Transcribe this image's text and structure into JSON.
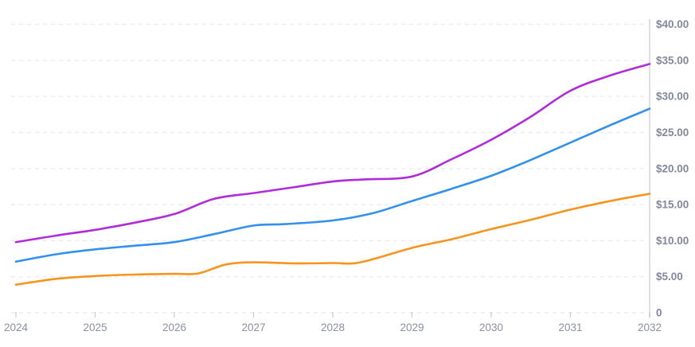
{
  "chart": {
    "background": "#ffffff",
    "grid_color": "#e9ebf3",
    "axis_line_color": "#dde0ea",
    "tick_color": "#c6cad8",
    "y_label_color": "#82879c",
    "x_label_color": "#8a8fa3",
    "y_axis": {
      "position": "right",
      "tick_labels": [
        "$40.00",
        "$35.00",
        "$30.00",
        "$25.00",
        "$20.00",
        "$15.00",
        "$10.00",
        "$5.00",
        "0"
      ],
      "tick_values": [
        40,
        35,
        30,
        25,
        20,
        15,
        10,
        5,
        0
      ]
    },
    "x_axis": {
      "tick_labels": [
        "2024",
        "2025",
        "2026",
        "2027",
        "2028",
        "2029",
        "2030",
        "2031",
        "2032"
      ],
      "tick_values": [
        2024,
        2025,
        2026,
        2027,
        2028,
        2029,
        2030,
        2031,
        2032
      ]
    }
  },
  "chart_data": {
    "type": "line",
    "title": "",
    "xlabel": "",
    "ylabel": "",
    "x": [
      2024,
      2025,
      2026,
      2027,
      2028,
      2029,
      2030,
      2031,
      2032
    ],
    "ylim": [
      0,
      40
    ],
    "xlim": [
      2024,
      2032
    ],
    "grid": "horizontal dashed",
    "legend": "none",
    "y_axis_side": "right",
    "currency_format": "USD",
    "series": [
      {
        "name": "purple-line",
        "color": "#b02bd9",
        "values": [
          9.8,
          11.5,
          13.7,
          16.6,
          18.2,
          18.9,
          24.0,
          30.8,
          34.5
        ]
      },
      {
        "name": "blue-line",
        "color": "#3390ec",
        "values": [
          7.1,
          8.8,
          9.8,
          12.1,
          12.8,
          15.5,
          19.0,
          23.6,
          28.3
        ]
      },
      {
        "name": "orange-line",
        "color": "#f7941d",
        "values": [
          3.9,
          5.1,
          5.4,
          7.0,
          6.9,
          9.0,
          11.6,
          14.3,
          16.5
        ]
      }
    ],
    "smooth_samples": [
      {
        "name": "purple-line",
        "points": [
          [
            2024,
            9.8
          ],
          [
            2024.5,
            10.7
          ],
          [
            2025,
            11.5
          ],
          [
            2025.5,
            12.5
          ],
          [
            2026,
            13.7
          ],
          [
            2026.5,
            15.8
          ],
          [
            2027,
            16.6
          ],
          [
            2027.5,
            17.4
          ],
          [
            2028,
            18.2
          ],
          [
            2028.4,
            18.5
          ],
          [
            2029,
            18.9
          ],
          [
            2029.5,
            21.3
          ],
          [
            2030,
            24.0
          ],
          [
            2030.5,
            27.2
          ],
          [
            2031,
            30.8
          ],
          [
            2031.5,
            32.9
          ],
          [
            2032,
            34.5
          ]
        ]
      },
      {
        "name": "blue-line",
        "points": [
          [
            2024,
            7.1
          ],
          [
            2024.5,
            8.1
          ],
          [
            2025,
            8.8
          ],
          [
            2025.5,
            9.3
          ],
          [
            2026,
            9.8
          ],
          [
            2026.5,
            10.9
          ],
          [
            2027,
            12.1
          ],
          [
            2027.4,
            12.3
          ],
          [
            2028,
            12.8
          ],
          [
            2028.5,
            13.8
          ],
          [
            2029,
            15.5
          ],
          [
            2029.5,
            17.2
          ],
          [
            2030,
            19.0
          ],
          [
            2030.5,
            21.2
          ],
          [
            2031,
            23.6
          ],
          [
            2031.5,
            26.0
          ],
          [
            2032,
            28.3
          ]
        ]
      },
      {
        "name": "orange-line",
        "points": [
          [
            2024,
            3.9
          ],
          [
            2024.5,
            4.7
          ],
          [
            2025,
            5.1
          ],
          [
            2025.5,
            5.3
          ],
          [
            2026,
            5.4
          ],
          [
            2026.3,
            5.45
          ],
          [
            2026.65,
            6.7
          ],
          [
            2027,
            7.0
          ],
          [
            2027.5,
            6.85
          ],
          [
            2028,
            6.9
          ],
          [
            2028.35,
            7.0
          ],
          [
            2029,
            9.0
          ],
          [
            2029.5,
            10.2
          ],
          [
            2030,
            11.6
          ],
          [
            2030.5,
            12.9
          ],
          [
            2031,
            14.3
          ],
          [
            2031.5,
            15.5
          ],
          [
            2032,
            16.5
          ]
        ]
      }
    ]
  }
}
